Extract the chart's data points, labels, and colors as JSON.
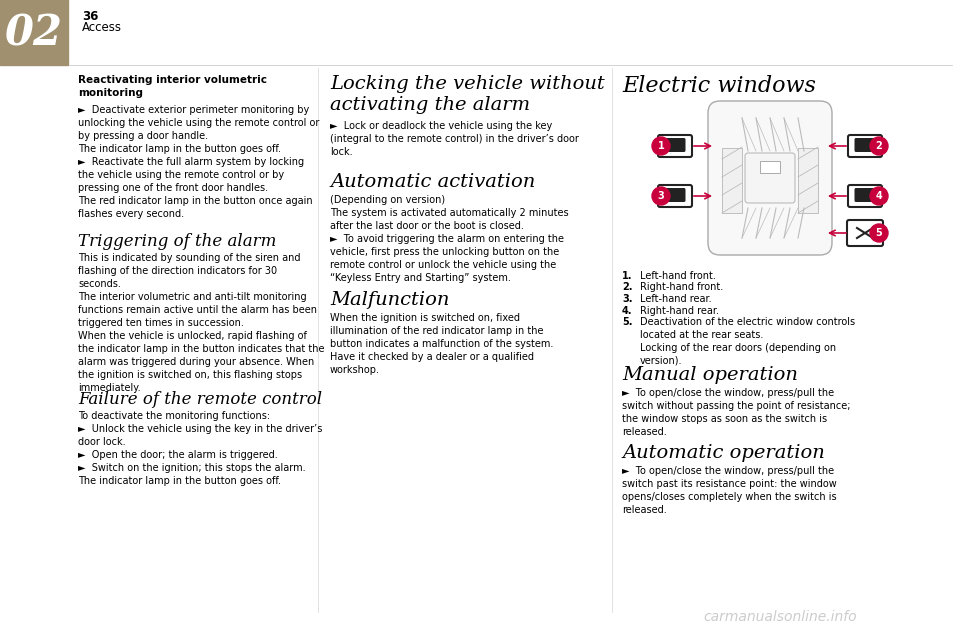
{
  "page_bg": "#ffffff",
  "header_color": "#a09070",
  "header_text": "02",
  "page_number": "36",
  "section": "Access",
  "watermark": "carmanualsonline.info",
  "col1_bold_title": "Reactivating interior volumetric\nmonitoring",
  "col1_body1": "►  Deactivate exterior perimeter monitoring by\nunlocking the vehicle using the remote control or\nby pressing a door handle.\nThe indicator lamp in the button goes off.\n►  Reactivate the full alarm system by locking\nthe vehicle using the remote control or by\npressing one of the front door handles.\nThe red indicator lamp in the button once again\nflashes every second.",
  "col1_h2": "Triggering of the alarm",
  "col1_body2": "This is indicated by sounding of the siren and\nflashing of the direction indicators for 30\nseconds.\nThe interior volumetric and anti-tilt monitoring\nfunctions remain active until the alarm has been\ntriggered ten times in succession.\nWhen the vehicle is unlocked, rapid flashing of\nthe indicator lamp in the button indicates that the\nalarm was triggered during your absence. When\nthe ignition is switched on, this flashing stops\nimmediately.",
  "col1_h3": "Failure of the remote control",
  "col1_body3": "To deactivate the monitoring functions:\n►  Unlock the vehicle using the key in the driver’s\ndoor lock.\n►  Open the door; the alarm is triggered.\n►  Switch on the ignition; this stops the alarm.\nThe indicator lamp in the button goes off.",
  "col2_h1": "Locking the vehicle without\nactivating the alarm",
  "col2_body1": "►  Lock or deadlock the vehicle using the key\n(integral to the remote control) in the driver’s door\nlock.",
  "col2_h2": "Automatic activation",
  "col2_body2": "(Depending on version)\nThe system is activated automatically 2 minutes\nafter the last door or the boot is closed.\n►  To avoid triggering the alarm on entering the\nvehicle, first press the unlocking button on the\nremote control or unlock the vehicle using the\n“Keyless Entry and Starting” system.",
  "col2_h3": "Malfunction",
  "col2_body3": "When the ignition is switched on, fixed\nillumination of the red indicator lamp in the\nbutton indicates a malfunction of the system.\nHave it checked by a dealer or a qualified\nworkshop.",
  "col3_h1": "Electric windows",
  "col3_list": [
    "Left-hand front.",
    "Right-hand front.",
    "Left-hand rear.",
    "Right-hand rear.",
    "Deactivation of the electric window controls\nlocated at the rear seats.\nLocking of the rear doors (depending on\nversion)."
  ],
  "col3_h2": "Manual operation",
  "col3_body2": "►  To open/close the window, press/pull the\nswitch without passing the point of resistance;\nthe window stops as soon as the switch is\nreleased.",
  "col3_h3": "Automatic operation",
  "col3_body3": "►  To open/close the window, press/pull the\nswitch past its resistance point: the window\nopens/closes completely when the switch is\nreleased.",
  "accent_color": "#c8003c",
  "text_color": "#000000"
}
